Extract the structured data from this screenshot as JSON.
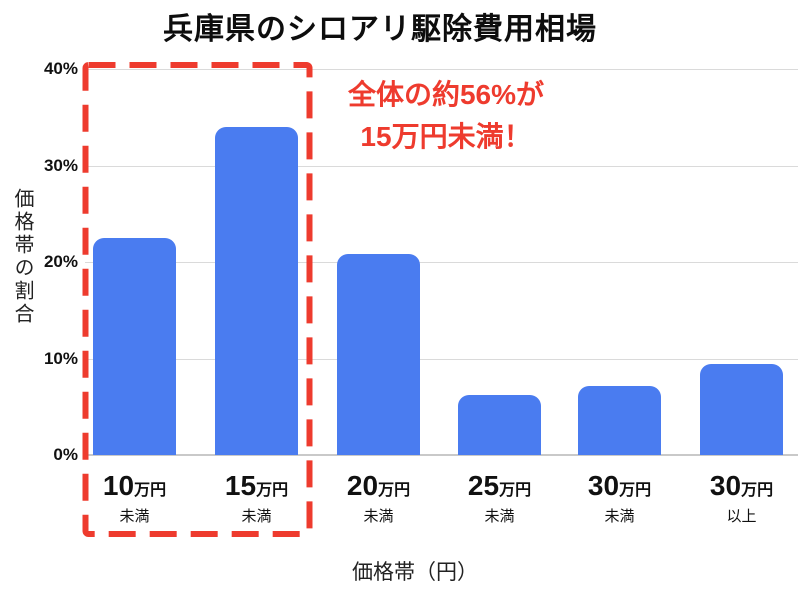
{
  "title": "兵庫県のシロアリ駆除費用相場",
  "annotation": {
    "line1": "全体の約56%が",
    "line2": "15万円未満！"
  },
  "y_axis": {
    "title": "価格帯の割合",
    "tick_labels": [
      "0%",
      "10%",
      "20%",
      "30%",
      "40%"
    ]
  },
  "x_axis": {
    "title": "価格帯（円）"
  },
  "colors": {
    "bar": "#4a7cf0",
    "accent_red": "#ee3b2e",
    "gridline": "#dadada",
    "text": "#111111"
  },
  "chart_data": {
    "type": "bar",
    "title": "兵庫県のシロアリ駆除費用相場",
    "categories": [
      "10万円未満",
      "15万円未満",
      "20万円未満",
      "25万円未満",
      "30万円未満",
      "30万円以上"
    ],
    "category_labels": [
      {
        "num": "10",
        "unit": "万円",
        "sub": "未満"
      },
      {
        "num": "15",
        "unit": "万円",
        "sub": "未満"
      },
      {
        "num": "20",
        "unit": "万円",
        "sub": "未満"
      },
      {
        "num": "25",
        "unit": "万円",
        "sub": "未満"
      },
      {
        "num": "30",
        "unit": "万円",
        "sub": "未満"
      },
      {
        "num": "30",
        "unit": "万円",
        "sub": "以上"
      }
    ],
    "values": [
      22.5,
      34.0,
      20.8,
      6.2,
      7.1,
      9.4
    ],
    "unit": "%",
    "xlabel": "価格帯（円）",
    "ylabel": "価格帯の割合",
    "ylim": [
      0,
      40
    ],
    "y_ticks": [
      0,
      10,
      20,
      30,
      40
    ],
    "grid": "horizontal",
    "legend": "none",
    "bar_color": "#4a7cf0",
    "annotation_text": "全体の約56%が 15万円未満！",
    "highlight": "red dashed rectangle around the first two bars (10万円未満 and 15万円未満)"
  }
}
